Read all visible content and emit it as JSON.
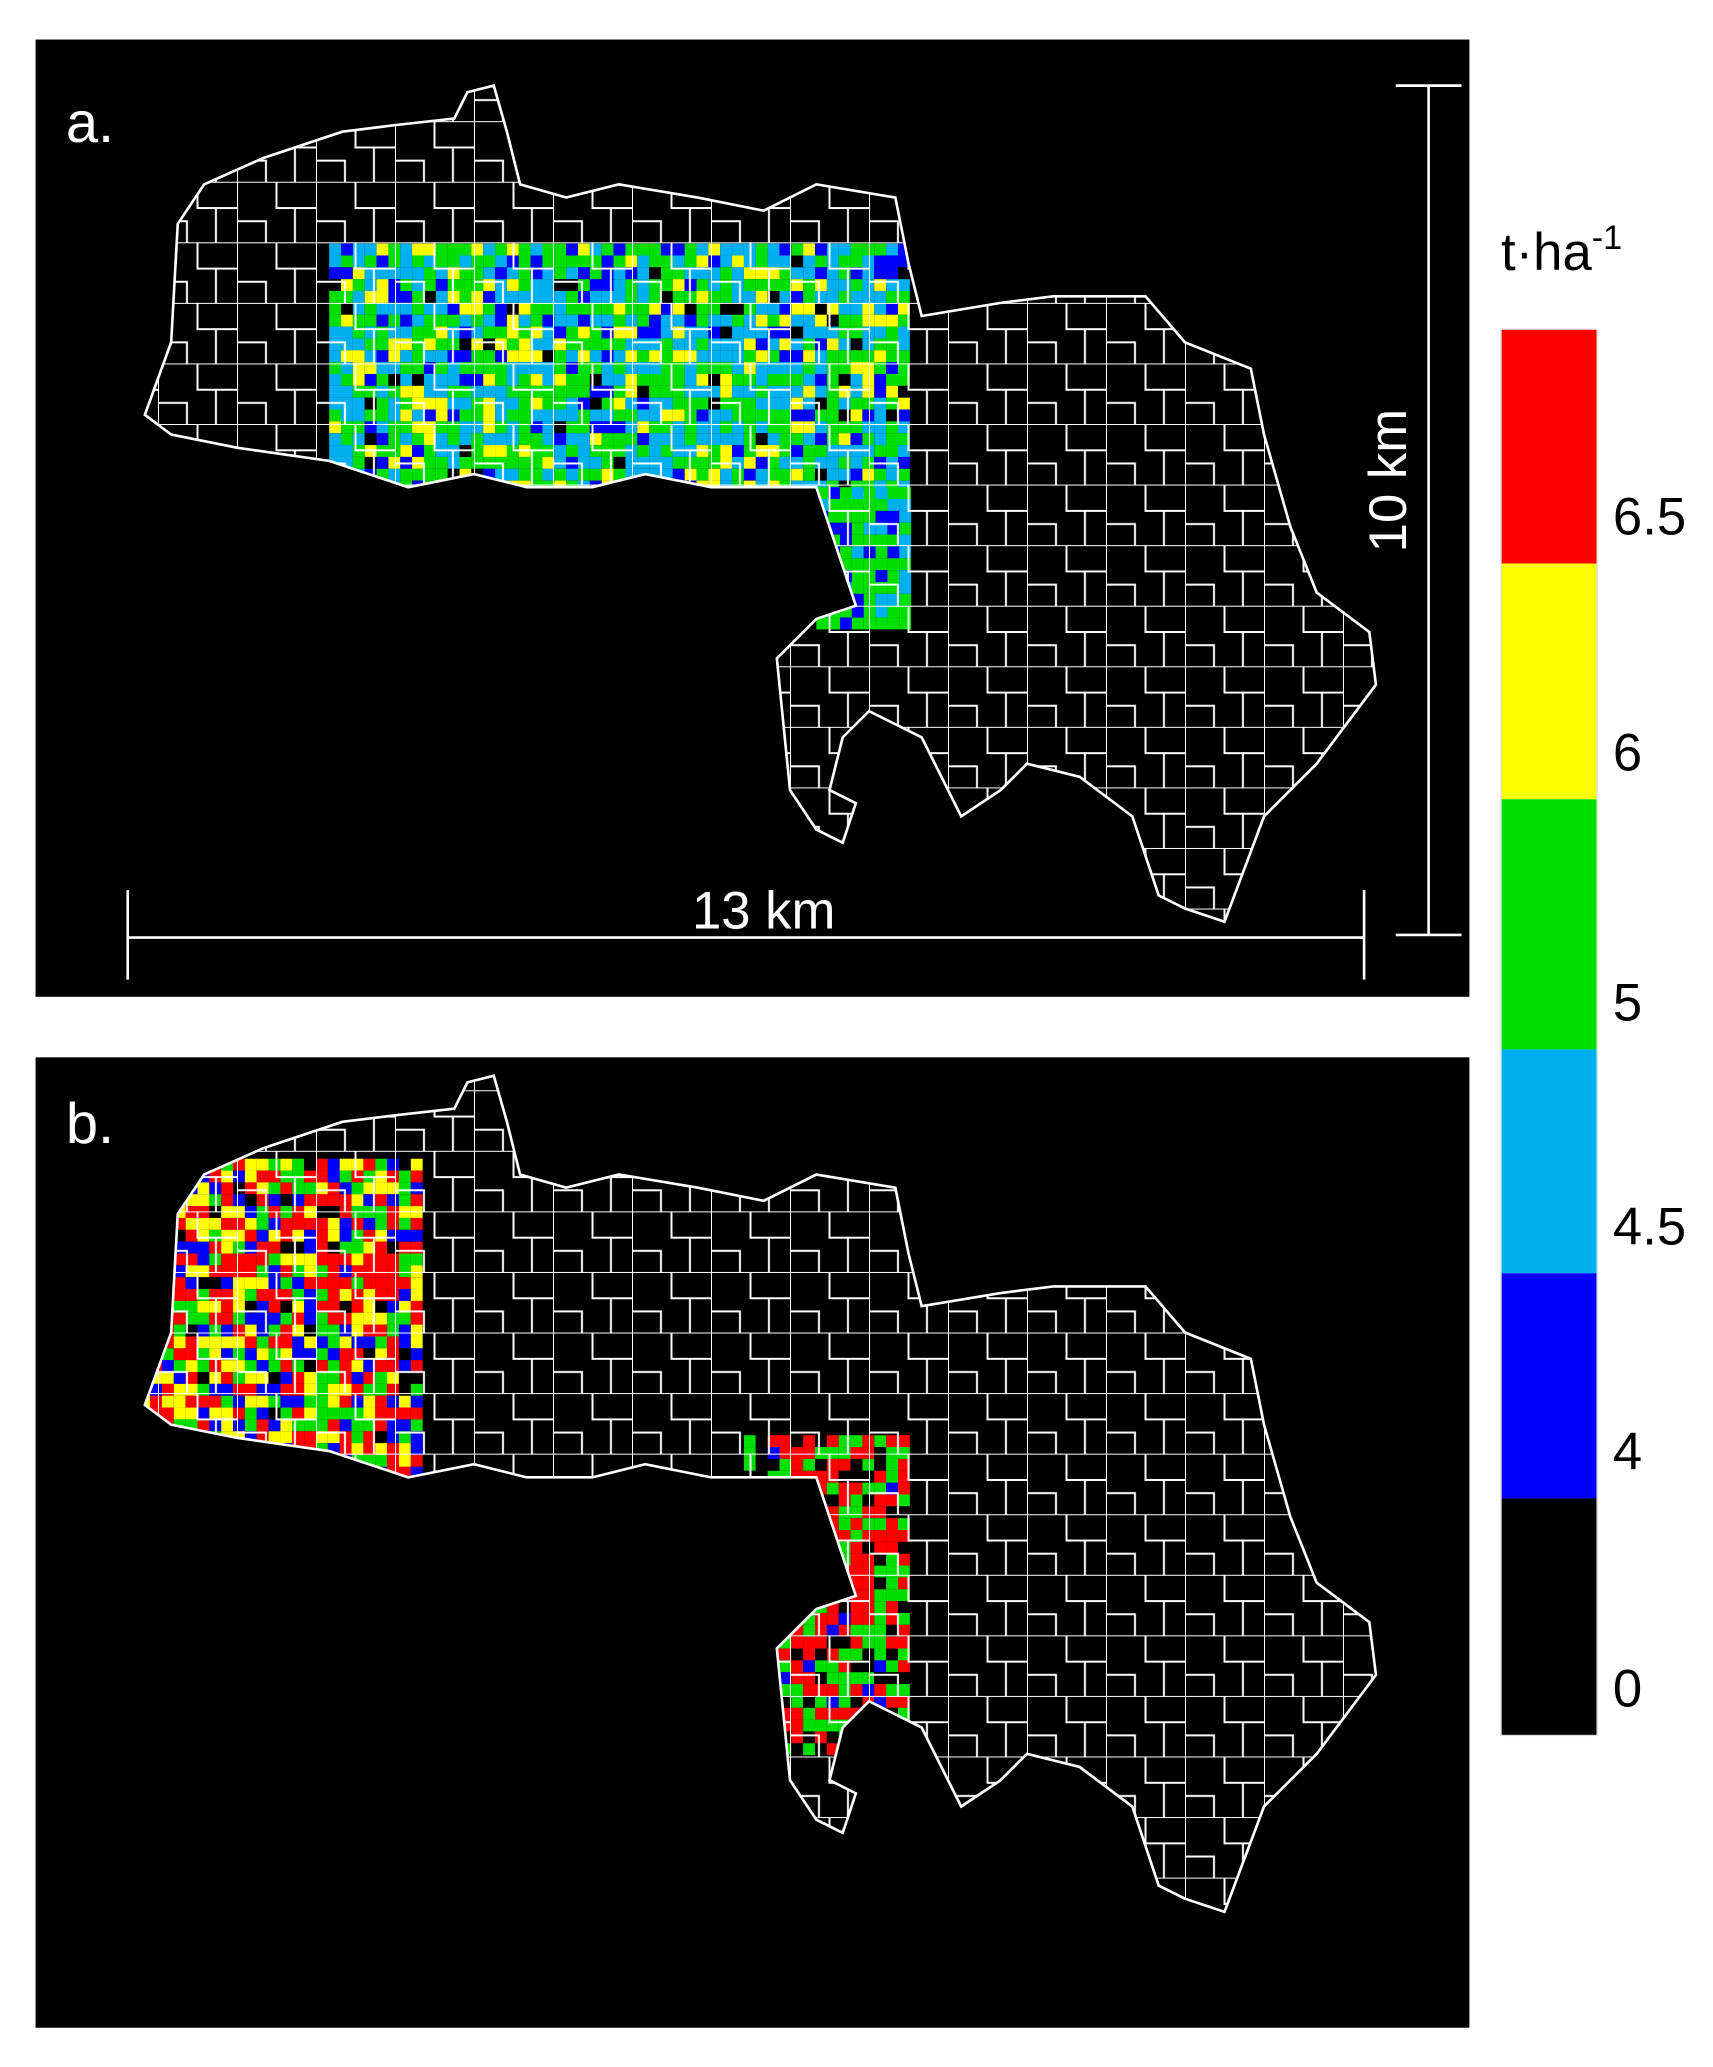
{
  "panels": [
    {
      "label": "a."
    },
    {
      "label": "b."
    }
  ],
  "scale_bars": {
    "horizontal": "13 km",
    "vertical": "10 km"
  },
  "legend": {
    "unit": "t·ha",
    "unit_exponent": "-1",
    "classes": [
      {
        "value": 6.5,
        "color": "#ff0000"
      },
      {
        "value": 6,
        "color": "#ffff00"
      },
      {
        "value": 5,
        "color": "#00e000"
      },
      {
        "value": 4.5,
        "color": "#00b0f0"
      },
      {
        "value": 4,
        "color": "#0000ff"
      },
      {
        "value": 0,
        "color": "#000000"
      }
    ]
  }
}
